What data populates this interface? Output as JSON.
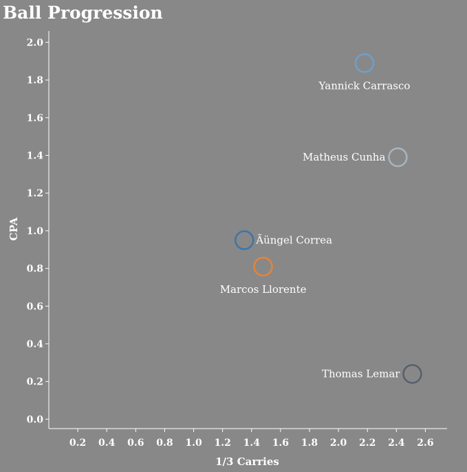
{
  "chart_data": {
    "type": "scatter",
    "title": "Ball Progression",
    "xlabel": "1/3 Carries",
    "ylabel": "CPA",
    "xlim": [
      0.0,
      2.75
    ],
    "ylim": [
      -0.05,
      2.06
    ],
    "x_ticks": [
      0.2,
      0.4,
      0.6,
      0.8,
      1.0,
      1.2,
      1.4,
      1.6,
      1.8,
      2.0,
      2.2,
      2.4,
      2.6
    ],
    "y_ticks": [
      0.0,
      0.2,
      0.4,
      0.6,
      0.8,
      1.0,
      1.2,
      1.4,
      1.6,
      1.8,
      2.0
    ],
    "grid": false,
    "points": [
      {
        "label": "Yannick Carrasco",
        "x": 2.18,
        "y": 1.89,
        "color": "#6f9fc9",
        "label_pos": "below"
      },
      {
        "label": "Matheus Cunha",
        "x": 2.41,
        "y": 1.39,
        "color": "#a9b4bd",
        "label_pos": "left"
      },
      {
        "label": "Ãüngel Correa",
        "x": 1.35,
        "y": 0.95,
        "color": "#3d74a8",
        "label_pos": "right"
      },
      {
        "label": "Marcos Llorente",
        "x": 1.48,
        "y": 0.81,
        "color": "#e6833a",
        "label_pos": "below"
      },
      {
        "label": "Thomas Lemar",
        "x": 2.51,
        "y": 0.24,
        "color": "#55606b",
        "label_pos": "left"
      }
    ]
  }
}
